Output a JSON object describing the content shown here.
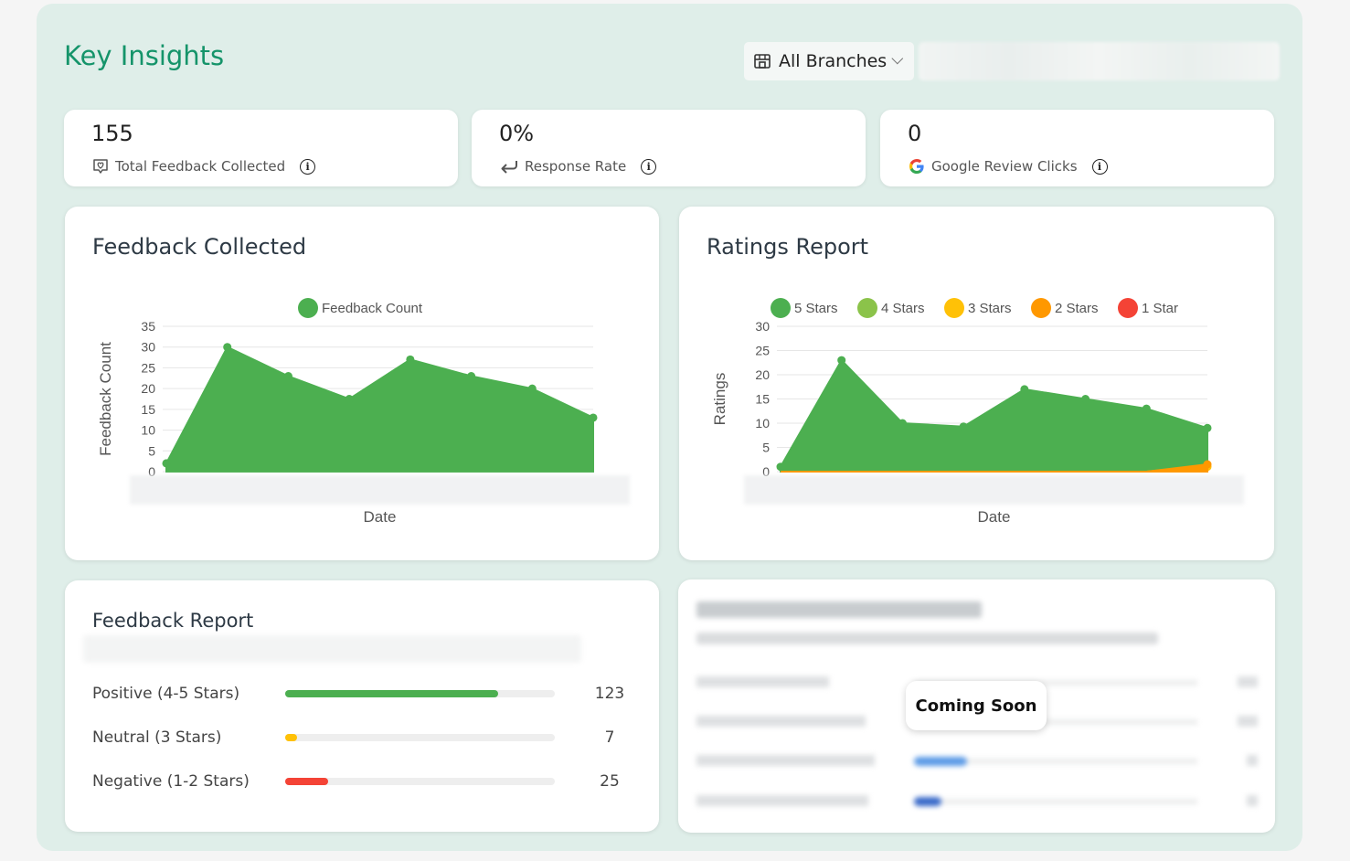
{
  "header": {
    "title": "Key Insights",
    "branch_select": "All Branches"
  },
  "stats": [
    {
      "value": "155",
      "label": "Total Feedback Collected",
      "icon": "chat-heart-icon"
    },
    {
      "value": "0%",
      "label": "Response Rate",
      "icon": "reply-arrow-icon"
    },
    {
      "value": "0",
      "label": "Google Review Clicks",
      "icon": "google-icon"
    }
  ],
  "feedback_chart": {
    "title": "Feedback Collected",
    "legend": "Feedback Count",
    "ylabel": "Feedback Count",
    "xlabel": "Date"
  },
  "ratings_chart": {
    "title": "Ratings Report",
    "ylabel": "Ratings",
    "xlabel": "Date",
    "legend": [
      "5 Stars",
      "4 Stars",
      "3 Stars",
      "2 Stars",
      "1 Star"
    ]
  },
  "chart_data": [
    {
      "type": "area",
      "title": "Feedback Collected",
      "xlabel": "Date",
      "ylabel": "Feedback Count",
      "ylim": [
        0,
        35
      ],
      "yticks": [
        0,
        5,
        10,
        15,
        20,
        25,
        30,
        35
      ],
      "grid": true,
      "legend_position": "top",
      "series": [
        {
          "name": "Feedback Count",
          "color": "#4caf50",
          "values": [
            2,
            30,
            23,
            17.5,
            27,
            23,
            20,
            13
          ]
        }
      ]
    },
    {
      "type": "area",
      "title": "Ratings Report",
      "xlabel": "Date",
      "ylabel": "Ratings",
      "ylim": [
        0,
        30
      ],
      "yticks": [
        0,
        5,
        10,
        15,
        20,
        25,
        30
      ],
      "grid": true,
      "legend_position": "top",
      "series": [
        {
          "name": "5 Stars",
          "color": "#4caf50",
          "values": [
            1,
            23,
            10,
            9.3,
            17,
            15,
            13,
            9
          ]
        },
        {
          "name": "4 Stars",
          "color": "#8bc34a",
          "values": [
            0,
            0,
            0,
            0,
            0,
            0,
            0,
            0
          ]
        },
        {
          "name": "3 Stars",
          "color": "#ffc107",
          "values": [
            0,
            0,
            0,
            0,
            0,
            0,
            0,
            1
          ]
        },
        {
          "name": "2 Stars",
          "color": "#ff9800",
          "values": [
            0,
            0,
            0,
            0,
            0,
            0,
            0,
            1.5
          ]
        },
        {
          "name": "1 Star",
          "color": "#f44336",
          "values": [
            0,
            0,
            0,
            0,
            0,
            0,
            0,
            0
          ]
        }
      ]
    }
  ],
  "feedback_report": {
    "title": "Feedback Report",
    "rows": [
      {
        "label": "Positive (4-5 Stars)",
        "value": "123",
        "fraction": 0.79,
        "color": "#4caf50"
      },
      {
        "label": "Neutral (3 Stars)",
        "value": "7",
        "fraction": 0.045,
        "color": "#ffc107"
      },
      {
        "label": "Negative (1-2 Stars)",
        "value": "25",
        "fraction": 0.16,
        "color": "#f44336"
      }
    ]
  },
  "timeline": {
    "badge": "Coming Soon"
  }
}
